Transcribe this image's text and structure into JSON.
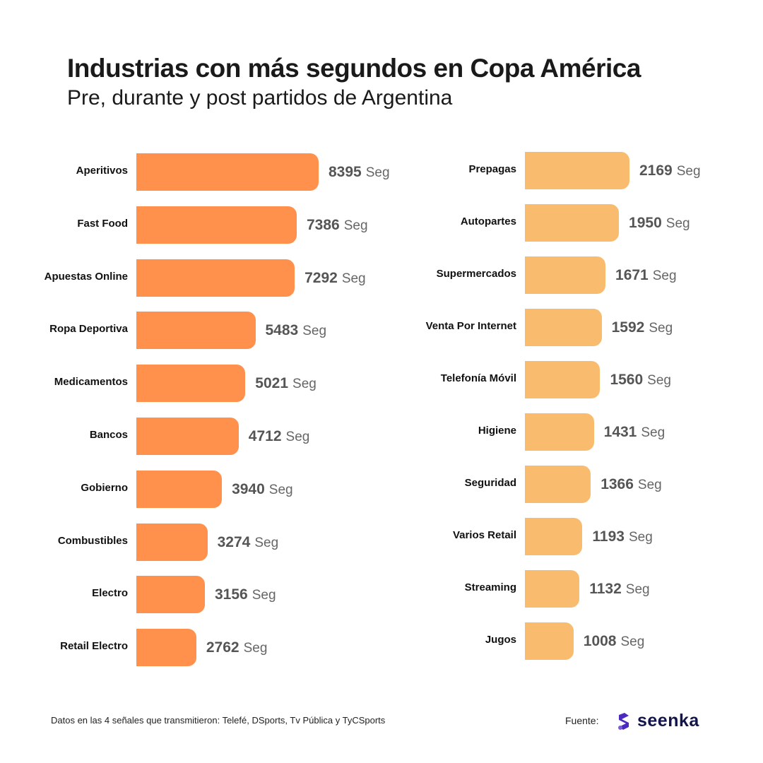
{
  "chart_data": [
    {
      "type": "bar",
      "orientation": "horizontal",
      "title": "Industrias con más segundos en Copa América",
      "subtitle": "Pre, durante y post partidos de Argentina",
      "unit": "Seg",
      "color": "#FF914D",
      "categories": [
        "Aperitivos",
        "Fast Food",
        "Apuestas Online",
        "Ropa Deportiva",
        "Medicamentos",
        "Bancos",
        "Gobierno",
        "Combustibles",
        "Electro",
        "Retail Electro"
      ],
      "values": [
        8395,
        7386,
        7292,
        5483,
        5021,
        4712,
        3940,
        3274,
        3156,
        2762
      ]
    },
    {
      "type": "bar",
      "orientation": "horizontal",
      "unit": "Seg",
      "color": "#F9BC6E",
      "categories": [
        "Prepagas",
        "Autopartes",
        "Supermercados",
        "Venta Por Internet",
        "Telefonía Móvil",
        "Higiene",
        "Seguridad",
        "Varios Retail",
        "Streaming",
        "Jugos"
      ],
      "values": [
        2169,
        1950,
        1671,
        1592,
        1560,
        1431,
        1366,
        1193,
        1132,
        1008
      ]
    }
  ],
  "footer": {
    "note": "Datos en las 4 señales que transmitieron: Telefé, DSports, Tv Pública y TyCSports",
    "source_label": "Fuente:",
    "logo_text": "seenka"
  }
}
